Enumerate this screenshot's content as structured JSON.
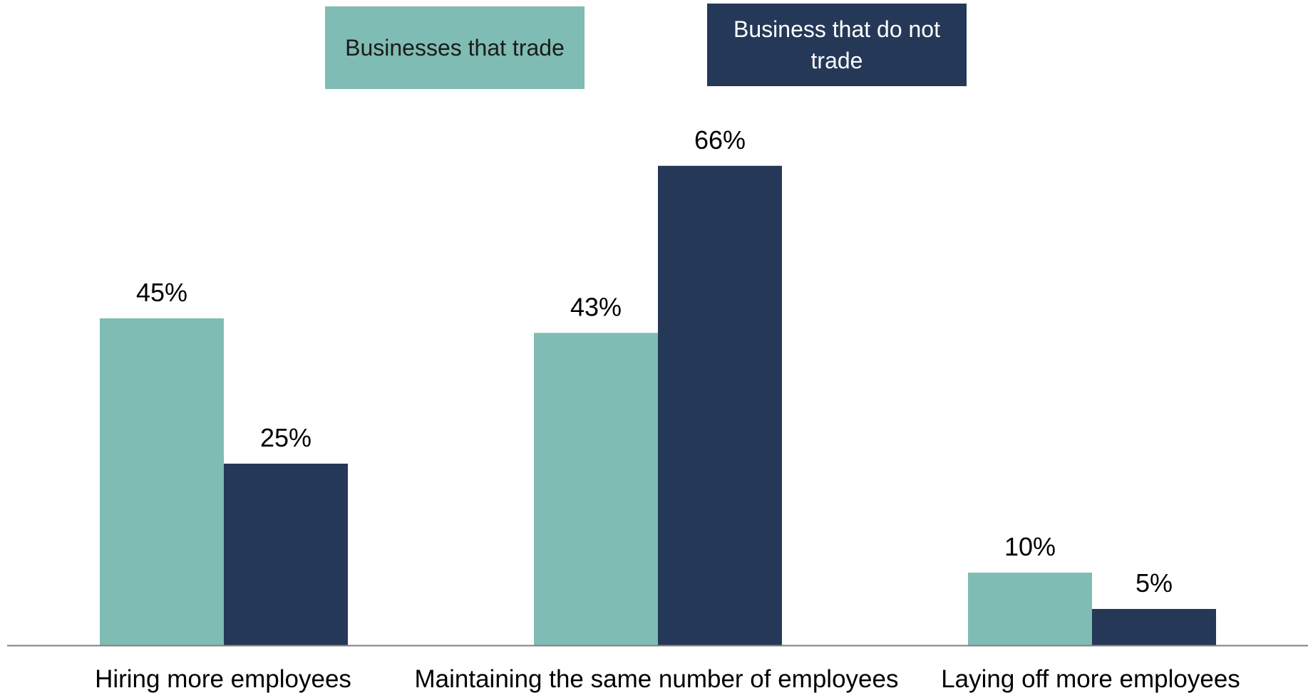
{
  "chart_data": {
    "type": "bar",
    "title": "",
    "xlabel": "",
    "ylabel": "",
    "ylim": [
      0,
      70
    ],
    "grid": false,
    "legend_position": "top",
    "categories": [
      "Hiring more employees",
      "Maintaining the same number of employees",
      "Laying off more employees"
    ],
    "series": [
      {
        "name": "Businesses that trade",
        "values": [
          45,
          43,
          10
        ],
        "labels": [
          "45%",
          "43%",
          "10%"
        ],
        "color": "#7fbcb4"
      },
      {
        "name": "Business that do not trade",
        "values": [
          25,
          66,
          5
        ],
        "labels": [
          "25%",
          "66%",
          "5%"
        ],
        "color": "#253858"
      }
    ],
    "axis_color": "#7f7f7f"
  }
}
